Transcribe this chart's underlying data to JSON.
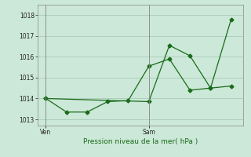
{
  "xlabel_bottom": "Pression niveau de la mer( hPa )",
  "background_color": "#cce8d8",
  "grid_color": "#aacbb8",
  "line_color": "#1a6b1a",
  "series1": {
    "x": [
      0,
      1,
      2,
      3,
      4,
      5,
      6,
      7,
      8,
      9
    ],
    "y": [
      1014.0,
      1013.35,
      1013.35,
      1013.85,
      1013.9,
      1015.55,
      1015.9,
      1014.4,
      1014.5,
      1014.6
    ]
  },
  "series2": {
    "x": [
      0,
      5,
      6,
      7,
      8,
      9
    ],
    "y": [
      1014.0,
      1013.85,
      1016.55,
      1016.05,
      1014.5,
      1017.8
    ]
  },
  "yticks": [
    1013,
    1014,
    1015,
    1016,
    1017,
    1018
  ],
  "ylim": [
    1012.7,
    1018.5
  ],
  "xlim": [
    -0.4,
    9.6
  ],
  "ven_x": 0,
  "sam_x": 5
}
